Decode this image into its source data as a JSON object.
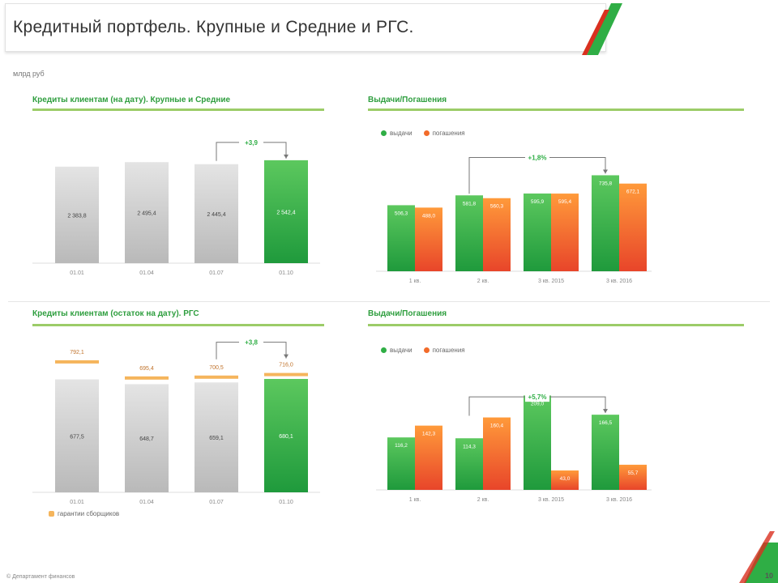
{
  "header": {
    "title": "Кредитный портфель. Крупные и Средние и РГС.",
    "units": "млрд руб"
  },
  "panels": {
    "top_left_title": "Кредиты клиентам (на дату). Крупные и Средние",
    "top_right_title": "Выдачи/Погашения",
    "bottom_left_title": "Кредиты клиентам (остаток на дату). РГС",
    "bottom_right_title": "Выдачи/Погашения"
  },
  "legend": {
    "issued": "выдачи",
    "repaid": "погашения",
    "guarantee": "гарантии сборщиков"
  },
  "colors": {
    "green": "#2fae45",
    "orange": "#f26b2a",
    "gray": "#c9c9c9",
    "accent_line": "#9ccc68",
    "guarantee": "#f5b55c"
  },
  "footer": {
    "text": "© Департамент финансов",
    "page": "10"
  },
  "chart_data": [
    {
      "id": "tl",
      "type": "bar",
      "categories": [
        "01.01",
        "01.04",
        "01.07",
        "01.10"
      ],
      "values": [
        2383.8,
        2495.4,
        2445.4,
        2542.4
      ],
      "value_labels": [
        "2 383,8",
        "2 495,4",
        "2 445,4",
        "2 542,4"
      ],
      "highlight_last": true,
      "bracket_label": "+3,9",
      "ylim": [
        0,
        2700
      ]
    },
    {
      "id": "tr",
      "type": "bar",
      "categories": [
        "1 кв.",
        "2 кв.",
        "3 кв. 2015",
        "3 кв. 2016"
      ],
      "category_sublabels": [
        "",
        "",
        "",
        ""
      ],
      "series": [
        {
          "name": "выдачи",
          "values": [
            506.3,
            581.8,
            595.9,
            735.8
          ],
          "labels": [
            "506,3",
            "581,8",
            "595,9",
            "735,8"
          ]
        },
        {
          "name": "погашения",
          "values": [
            488.0,
            560.3,
            595.4,
            672.1
          ],
          "labels": [
            "488,0",
            "560,3",
            "595,4",
            "672,1"
          ]
        }
      ],
      "bracket_label": "+1,8%",
      "ylim": [
        0,
        900
      ]
    },
    {
      "id": "bl",
      "type": "bar",
      "categories": [
        "01.01",
        "01.04",
        "01.07",
        "01.10"
      ],
      "values": [
        677.5,
        648.7,
        659.1,
        680.1
      ],
      "value_labels": [
        "677,5",
        "648,7",
        "659,1",
        "680,1"
      ],
      "top_labels": [
        "792,1",
        "695,4",
        "700,5",
        "716,0"
      ],
      "top_values": [
        792.1,
        695.4,
        700.5,
        716.0
      ],
      "highlight_last": true,
      "bracket_label": "+3,8",
      "ylim": [
        0,
        850
      ]
    },
    {
      "id": "br",
      "type": "bar",
      "categories": [
        "1 кв.",
        "2 кв.",
        "3 кв. 2015",
        "3 кв. 2016"
      ],
      "series": [
        {
          "name": "выдачи",
          "values": [
            116.2,
            114.3,
            209.0,
            166.5
          ],
          "labels": [
            "116,2",
            "114,3",
            "209,0",
            "166,5"
          ]
        },
        {
          "name": "погашения",
          "values": [
            142.3,
            160.4,
            43.0,
            55.7
          ],
          "labels": [
            "142,3",
            "160,4",
            "43,0",
            "55,7"
          ]
        }
      ],
      "bracket_label": "+5,7%",
      "ylim": [
        0,
        260
      ]
    }
  ]
}
